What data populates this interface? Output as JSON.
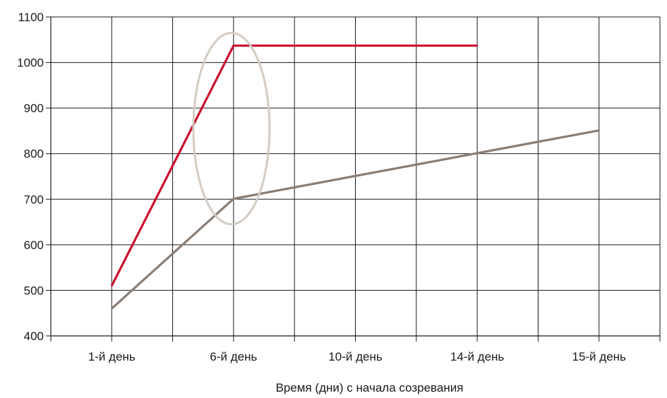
{
  "chart_data": {
    "type": "line",
    "title": "",
    "xlabel": "Время (дни) с начала созревания",
    "ylabel": "",
    "categories": [
      "1-й день",
      "6-й день",
      "10-й день",
      "14-й день",
      "15-й день"
    ],
    "ylim": [
      400,
      1100
    ],
    "yticks": [
      400,
      500,
      600,
      700,
      800,
      900,
      1000,
      1100
    ],
    "grid": true,
    "legend": "none",
    "series": [
      {
        "values": [
          510,
          1037,
          1037,
          1037,
          null
        ],
        "color": "#c8102e"
      },
      {
        "values": [
          460,
          701,
          751,
          801,
          851
        ],
        "color": "#8a7d74"
      }
    ],
    "annotation": {
      "shape": "ellipse",
      "around_category": "6-й день",
      "y_range": [
        645,
        1065
      ],
      "color": "#d4ccc4"
    }
  }
}
